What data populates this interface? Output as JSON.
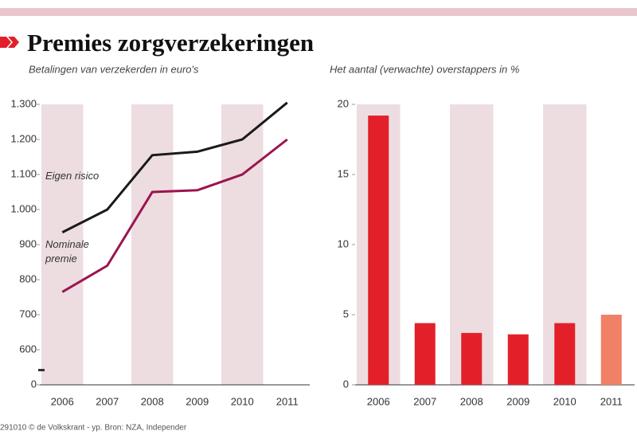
{
  "title": "Premies zorgverzekeringen",
  "source": "291010 © de Volkskrant - yp. Bron: NZA, Independer",
  "chart_data": [
    {
      "type": "line",
      "subtitle": "Betalingen van verzekerden in euro's",
      "categories": [
        "2006",
        "2007",
        "2008",
        "2009",
        "2010",
        "2011"
      ],
      "series": [
        {
          "name": "Eigen risico",
          "color": "#1a1a1a",
          "values": [
            935,
            1000,
            1155,
            1165,
            1200,
            1305
          ]
        },
        {
          "name": "Nominale premie",
          "color": "#9b1550",
          "values": [
            765,
            840,
            1050,
            1055,
            1100,
            1200
          ]
        }
      ],
      "ylim": [
        500,
        1300
      ],
      "axis_break": true,
      "yticks": [
        0,
        600,
        700,
        800,
        900,
        {
          "value": 1000,
          "label": "1.000"
        },
        {
          "value": 1100,
          "label": "1.100"
        },
        {
          "value": 1200,
          "label": "1.200"
        },
        {
          "value": 1300,
          "label": "1.300"
        }
      ]
    },
    {
      "type": "bar",
      "subtitle": "Het aantal (verwachte) overstappers in %",
      "categories": [
        "2006",
        "2007",
        "2008",
        "2009",
        "2010",
        "2011"
      ],
      "values": [
        19.2,
        4.4,
        3.7,
        3.6,
        4.4,
        5.0
      ],
      "colors": [
        "#e3202a",
        "#e3202a",
        "#e3202a",
        "#e3202a",
        "#e3202a",
        "#f08066"
      ],
      "ylim": [
        0,
        20
      ],
      "yticks": [
        0,
        5,
        10,
        15,
        20
      ]
    }
  ]
}
